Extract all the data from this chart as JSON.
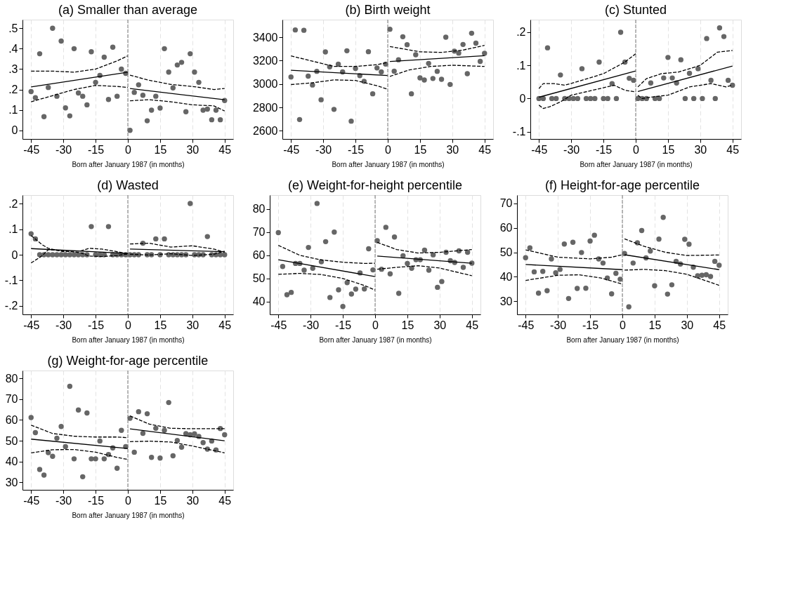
{
  "chart_data": [
    {
      "type": "scatter",
      "title": "(a) Smaller than average",
      "xlabel": "Born after January 1987 (in months)",
      "xlim": [
        -49,
        49
      ],
      "xticks": [
        -45,
        -30,
        -15,
        0,
        15,
        30,
        45
      ],
      "ylim": [
        -0.042,
        0.542
      ],
      "yticks": [
        0,
        {
          "value": 0.1,
          "label": ".1"
        },
        {
          "value": 0.2,
          "label": ".2"
        },
        {
          "value": 0.3,
          "label": ".3"
        },
        {
          "value": 0.4,
          "label": ".4"
        },
        {
          "value": 0.5,
          "label": ".5"
        }
      ],
      "grid": "x",
      "ref_lines": [
        {
          "axis": "x",
          "value": 0,
          "color": "#777777",
          "line_style": "dashed"
        }
      ],
      "x": [
        -45,
        -43,
        -41,
        -39,
        -37,
        -35,
        -33,
        -31,
        -29,
        -27,
        -25,
        -23,
        -21,
        -19,
        -17,
        -15,
        -13,
        -11,
        -9,
        -7,
        -5,
        -3,
        -1,
        1,
        3,
        5,
        7,
        9,
        11,
        13,
        15,
        17,
        19,
        21,
        23,
        25,
        27,
        29,
        31,
        33,
        35,
        37,
        39,
        41,
        43,
        45
      ],
      "series": [
        {
          "color": "#666666",
          "marker": "circle",
          "values": [
            0.19,
            0.16,
            0.375,
            0.067,
            0.21,
            0.5,
            0.167,
            0.437,
            0.11,
            0.071,
            0.4,
            0.183,
            0.167,
            0.125,
            0.385,
            0.235,
            0.269,
            0.358,
            0.151,
            0.407,
            0.167,
            0.3,
            0.279,
            0,
            0.186,
            0.223,
            0.172,
            0.047,
            0.099,
            0.167,
            0.109,
            0.4,
            0.285,
            0.208,
            0.32,
            0.333,
            0.091,
            0.375,
            0.285,
            0.235,
            0.099,
            0.104,
            0.052,
            0.099,
            0.052,
            0.146
          ]
        },
        {
          "type": "line",
          "color": "#000000",
          "line_style": "solid",
          "x": [
            -45,
            0
          ],
          "values": [
            0.213,
            0.285
          ]
        },
        {
          "type": "line",
          "color": "#000000",
          "line_style": "solid",
          "x": [
            1,
            45
          ],
          "values": [
            0.205,
            0.15
          ]
        },
        {
          "type": "line",
          "color": "#000000",
          "line_style": "dashed",
          "x": [
            -45,
            -35,
            -25,
            -15,
            -5,
            0
          ],
          "values": [
            0.29,
            0.29,
            0.285,
            0.3,
            0.34,
            0.365
          ]
        },
        {
          "type": "line",
          "color": "#000000",
          "line_style": "dashed",
          "x": [
            -45,
            -35,
            -25,
            -15,
            -5,
            0
          ],
          "values": [
            0.14,
            0.17,
            0.2,
            0.22,
            0.215,
            0.21
          ]
        },
        {
          "type": "line",
          "color": "#000000",
          "line_style": "dashed",
          "x": [
            1,
            10,
            20,
            30,
            40,
            45
          ],
          "values": [
            0.27,
            0.245,
            0.225,
            0.215,
            0.2,
            0.205
          ]
        },
        {
          "type": "line",
          "color": "#000000",
          "line_style": "dashed",
          "x": [
            1,
            10,
            20,
            30,
            40,
            45
          ],
          "values": [
            0.145,
            0.15,
            0.14,
            0.125,
            0.12,
            0.095
          ]
        }
      ]
    },
    {
      "type": "scatter",
      "title": "(b) Birth weight",
      "xlabel": "Born after January 1987 (in months)",
      "xlim": [
        -49,
        49
      ],
      "xticks": [
        -45,
        -30,
        -15,
        0,
        15,
        30,
        45
      ],
      "ylim": [
        2530,
        3550
      ],
      "yticks": [
        2600,
        2800,
        3000,
        3200,
        3400
      ],
      "grid": "x",
      "ref_lines": [
        {
          "axis": "x",
          "value": 0,
          "color": "#777777",
          "line_style": "dashed"
        }
      ],
      "x": [
        -45,
        -43,
        -41,
        -39,
        -37,
        -35,
        -33,
        -31,
        -29,
        -27,
        -25,
        -23,
        -21,
        -19,
        -17,
        -15,
        -13,
        -11,
        -9,
        -7,
        -5,
        -3,
        -1,
        1,
        3,
        5,
        7,
        9,
        11,
        13,
        15,
        17,
        19,
        21,
        23,
        25,
        27,
        29,
        31,
        33,
        35,
        37,
        39,
        41,
        43,
        45
      ],
      "series": [
        {
          "color": "#666666",
          "marker": "circle",
          "values": [
            3060,
            3462,
            2696,
            3459,
            3067,
            2991,
            3108,
            2865,
            3274,
            3146,
            2783,
            3169,
            3103,
            3284,
            2682,
            3133,
            3071,
            3023,
            3276,
            2916,
            3137,
            3103,
            3170,
            3468,
            3109,
            3207,
            3404,
            3336,
            2916,
            3250,
            3052,
            3034,
            3176,
            3047,
            3108,
            3040,
            3400,
            2996,
            3281,
            3264,
            3338,
            3088,
            3434,
            3349,
            3193,
            3262
          ]
        },
        {
          "type": "line",
          "color": "#000000",
          "line_style": "solid",
          "x": [
            -45,
            0
          ],
          "values": [
            3117,
            3072
          ]
        },
        {
          "type": "line",
          "color": "#000000",
          "line_style": "solid",
          "x": [
            1,
            45
          ],
          "values": [
            3192,
            3242
          ]
        },
        {
          "type": "line",
          "color": "#000000",
          "line_style": "dashed",
          "x": [
            -45,
            -35,
            -25,
            -15,
            -5,
            0
          ],
          "values": [
            3240,
            3195,
            3150,
            3150,
            3165,
            3185
          ]
        },
        {
          "type": "line",
          "color": "#000000",
          "line_style": "dashed",
          "x": [
            -45,
            -35,
            -25,
            -15,
            -5,
            0
          ],
          "values": [
            2995,
            3010,
            3035,
            3030,
            2985,
            2955
          ]
        },
        {
          "type": "line",
          "color": "#000000",
          "line_style": "dashed",
          "x": [
            1,
            15,
            25,
            35,
            45
          ],
          "values": [
            3320,
            3275,
            3270,
            3290,
            3330
          ]
        },
        {
          "type": "line",
          "color": "#000000",
          "line_style": "dashed",
          "x": [
            1,
            10,
            20,
            30,
            45
          ],
          "values": [
            3065,
            3120,
            3150,
            3160,
            3150
          ]
        }
      ]
    },
    {
      "type": "scatter",
      "title": "(c) Stunted",
      "xlabel": "Born after January 1987 (in months)",
      "xlim": [
        -49,
        49
      ],
      "xticks": [
        -45,
        -30,
        -15,
        0,
        15,
        30,
        45
      ],
      "ylim": [
        -0.122,
        0.238
      ],
      "yticks": [
        {
          "value": -0.1,
          "label": "-.1"
        },
        0,
        {
          "value": 0.1,
          "label": ".1"
        },
        {
          "value": 0.2,
          "label": ".2"
        }
      ],
      "grid": "x",
      "ref_lines": [
        {
          "axis": "x",
          "value": 0,
          "color": "#777777",
          "line_style": "dashed"
        }
      ],
      "x": [
        -45,
        -43,
        -41,
        -39,
        -37,
        -35,
        -33,
        -31,
        -29,
        -27,
        -25,
        -23,
        -21,
        -19,
        -17,
        -15,
        -13,
        -11,
        -9,
        -7,
        -5,
        -3,
        -1,
        1,
        3,
        5,
        7,
        9,
        11,
        13,
        15,
        17,
        19,
        21,
        23,
        25,
        27,
        29,
        31,
        33,
        35,
        37,
        39,
        41,
        43,
        45
      ],
      "series": [
        {
          "color": "#666666",
          "marker": "circle",
          "values": [
            0,
            0,
            0.153,
            0,
            0,
            0.071,
            0,
            0,
            0,
            0,
            0.09,
            0,
            0,
            0,
            0.11,
            0,
            0,
            0.045,
            0,
            0.2,
            0.11,
            0.061,
            0.055,
            0,
            0,
            0,
            0.047,
            0,
            0,
            0.062,
            0.124,
            0.062,
            0.047,
            0.117,
            0,
            0.076,
            0,
            0.09,
            0,
            0.181,
            0.055,
            0,
            0.213,
            0.187,
            0.055,
            0.04
          ]
        },
        {
          "type": "line",
          "color": "#000000",
          "line_style": "solid",
          "x": [
            -45,
            0
          ],
          "values": [
            0.004,
            0.083
          ]
        },
        {
          "type": "line",
          "color": "#000000",
          "line_style": "solid",
          "x": [
            1,
            45
          ],
          "values": [
            0.021,
            0.098
          ]
        },
        {
          "type": "line",
          "color": "#000000",
          "line_style": "dashed",
          "x": [
            -45,
            -43,
            -38,
            -33,
            -25,
            -15,
            -5,
            0
          ],
          "values": [
            0.03,
            0.045,
            0.045,
            0.04,
            0.055,
            0.075,
            0.11,
            0.135
          ]
        },
        {
          "type": "line",
          "color": "#000000",
          "line_style": "dashed",
          "x": [
            -45,
            -43,
            -40,
            -35,
            -30,
            -20,
            -10,
            -5,
            0
          ],
          "values": [
            -0.02,
            -0.03,
            -0.025,
            -0.01,
            0.01,
            0.025,
            0.04,
            0.025,
            0.02
          ]
        },
        {
          "type": "line",
          "color": "#000000",
          "line_style": "dashed",
          "x": [
            1,
            5,
            12,
            20,
            30,
            38,
            45
          ],
          "values": [
            0.035,
            0.06,
            0.075,
            0.08,
            0.1,
            0.14,
            0.145
          ]
        },
        {
          "type": "line",
          "color": "#000000",
          "line_style": "dashed",
          "x": [
            1,
            3,
            8,
            15,
            25,
            35,
            42,
            45
          ],
          "values": [
            0.01,
            0,
            0.005,
            0.01,
            0.035,
            0.045,
            0.035,
            0.04
          ]
        }
      ]
    },
    {
      "type": "scatter",
      "title": "(d) Wasted",
      "xlabel": "Born after January 1987 (in months)",
      "xlim": [
        -49,
        49
      ],
      "xticks": [
        -45,
        -30,
        -15,
        0,
        15,
        30,
        45
      ],
      "ylim": [
        -0.233,
        0.233
      ],
      "yticks": [
        {
          "value": -0.2,
          "label": "-.2"
        },
        {
          "value": -0.1,
          "label": "-.1"
        },
        0,
        {
          "value": 0.1,
          "label": ".1"
        },
        {
          "value": 0.2,
          "label": ".2"
        }
      ],
      "grid": "x",
      "ref_lines": [
        {
          "axis": "x",
          "value": 0,
          "color": "#777777",
          "line_style": "dashed"
        }
      ],
      "x": [
        -45,
        -43,
        -41,
        -39,
        -37,
        -35,
        -33,
        -31,
        -29,
        -27,
        -25,
        -23,
        -21,
        -19,
        -17,
        -15,
        -13,
        -11,
        -9,
        -7,
        -5,
        -3,
        -1,
        1,
        3,
        5,
        7,
        9,
        11,
        13,
        15,
        17,
        19,
        21,
        23,
        25,
        27,
        29,
        31,
        33,
        35,
        37,
        39,
        41,
        43,
        45
      ],
      "series": [
        {
          "color": "#666666",
          "marker": "circle",
          "values": [
            0.082,
            0.062,
            0,
            0,
            0,
            0,
            0,
            0,
            0,
            0,
            0,
            0,
            0,
            0,
            0.11,
            0,
            0,
            0,
            0.11,
            0,
            0,
            0,
            0,
            0,
            0,
            0,
            0.045,
            0,
            0,
            0.062,
            0,
            0.062,
            0,
            0,
            0,
            0,
            0,
            0.2,
            0,
            0,
            0,
            0.071,
            0,
            0,
            0,
            0
          ]
        },
        {
          "type": "line",
          "color": "#000000",
          "line_style": "solid",
          "x": [
            -45,
            0
          ],
          "values": [
            0.024,
            0.005
          ]
        },
        {
          "type": "line",
          "color": "#000000",
          "line_style": "solid",
          "x": [
            1,
            45
          ],
          "values": [
            0.022,
            0.012
          ]
        },
        {
          "type": "line",
          "color": "#000000",
          "line_style": "dashed",
          "x": [
            -45,
            -40,
            -37,
            -30,
            -22,
            -18,
            -12,
            -5,
            0
          ],
          "values": [
            0.075,
            0.04,
            0.025,
            0.012,
            0.015,
            0.025,
            0.022,
            0.012,
            0.003
          ]
        },
        {
          "type": "line",
          "color": "#000000",
          "line_style": "dashed",
          "x": [
            -45,
            -40,
            -37,
            -30,
            -22,
            -18,
            -12,
            -5,
            0
          ],
          "values": [
            -0.032,
            -0.005,
            0.02,
            0.015,
            0.008,
            -0.005,
            -0.007,
            -0.003,
            0.003
          ]
        },
        {
          "type": "line",
          "color": "#000000",
          "line_style": "dashed",
          "x": [
            1,
            10,
            20,
            30,
            40,
            45
          ],
          "values": [
            0.042,
            0.045,
            0.03,
            0.035,
            0.022,
            0.01
          ]
        },
        {
          "type": "line",
          "color": "#000000",
          "line_style": "dashed",
          "x": [
            1,
            10,
            20,
            30,
            40,
            45
          ],
          "values": [
            0.002,
            -0.001,
            0.004,
            -0.003,
            0.002,
            0.014
          ]
        }
      ]
    },
    {
      "type": "scatter",
      "title": "(e) Weight-for-height percentile",
      "xlabel": "Born after January 1987 (in months)",
      "xlim": [
        -49,
        49
      ],
      "xticks": [
        -45,
        -30,
        -15,
        0,
        15,
        30,
        45
      ],
      "ylim": [
        34.5,
        86
      ],
      "yticks": [
        40,
        50,
        60,
        70,
        80
      ],
      "grid": "x",
      "ref_lines": [
        {
          "axis": "x",
          "value": 0,
          "color": "#777777",
          "line_style": "dashed"
        }
      ],
      "x": [
        -45,
        -43,
        -41,
        -39,
        -37,
        -35,
        -33,
        -31,
        -29,
        -27,
        -25,
        -23,
        -21,
        -19,
        -17,
        -15,
        -13,
        -11,
        -9,
        -7,
        -5,
        -3,
        -1,
        1,
        3,
        5,
        7,
        9,
        11,
        13,
        15,
        17,
        19,
        21,
        23,
        25,
        27,
        29,
        31,
        33,
        35,
        37,
        39,
        41,
        43,
        45
      ],
      "series": [
        {
          "color": "#666666",
          "marker": "circle",
          "values": [
            69.8,
            55.2,
            43.0,
            44.0,
            56.5,
            56.5,
            53.6,
            63.4,
            54.4,
            82.4,
            57.2,
            65.9,
            41.8,
            70.0,
            45.1,
            37.9,
            48.2,
            43.3,
            45.4,
            52.4,
            45.5,
            62.8,
            53.7,
            66.3,
            54.0,
            72.1,
            52.0,
            67.9,
            43.6,
            59.8,
            56.5,
            54.4,
            58.1,
            58.1,
            62.2,
            53.6,
            60.2,
            46.2,
            48.7,
            61.3,
            57.7,
            56.9,
            61.9,
            54.8,
            61.3,
            56.6
          ]
        },
        {
          "type": "line",
          "color": "#000000",
          "line_style": "solid",
          "x": [
            -45,
            0
          ],
          "values": [
            58.1,
            50.8
          ]
        },
        {
          "type": "line",
          "color": "#000000",
          "line_style": "solid",
          "x": [
            1,
            45
          ],
          "values": [
            59.7,
            56.6
          ]
        },
        {
          "type": "line",
          "color": "#000000",
          "line_style": "dashed",
          "x": [
            -45,
            -35,
            -25,
            -15,
            -5,
            0
          ],
          "values": [
            64.3,
            60,
            58,
            57,
            56.5,
            56.6
          ]
        },
        {
          "type": "line",
          "color": "#000000",
          "line_style": "dashed",
          "x": [
            -45,
            -35,
            -25,
            -15,
            -5,
            0
          ],
          "values": [
            51.8,
            52.2,
            51.7,
            50,
            47,
            45
          ]
        },
        {
          "type": "line",
          "color": "#000000",
          "line_style": "dashed",
          "x": [
            1,
            10,
            20,
            30,
            45
          ],
          "values": [
            65.6,
            62.5,
            61,
            61.3,
            62.5
          ]
        },
        {
          "type": "line",
          "color": "#000000",
          "line_style": "dashed",
          "x": [
            1,
            10,
            20,
            30,
            45
          ],
          "values": [
            54,
            54.8,
            55.5,
            54.5,
            51.2
          ]
        }
      ]
    },
    {
      "type": "scatter",
      "title": "(f) Height-for-age percentile",
      "xlabel": "Born after January 1987 (in months)",
      "xlim": [
        -49,
        49
      ],
      "xticks": [
        -45,
        -30,
        -15,
        0,
        15,
        30,
        45
      ],
      "ylim": [
        24.6,
        73.4
      ],
      "yticks": [
        30,
        40,
        50,
        60,
        70
      ],
      "grid": "x",
      "ref_lines": [
        {
          "axis": "x",
          "value": 0,
          "color": "#777777",
          "line_style": "dashed"
        }
      ],
      "x": [
        -45,
        -43,
        -41,
        -39,
        -37,
        -35,
        -33,
        -31,
        -29,
        -27,
        -25,
        -23,
        -21,
        -19,
        -17,
        -15,
        -13,
        -11,
        -9,
        -7,
        -5,
        -3,
        -1,
        1,
        3,
        5,
        7,
        9,
        11,
        13,
        15,
        17,
        19,
        21,
        23,
        25,
        27,
        29,
        31,
        33,
        35,
        37,
        39,
        41,
        43,
        45
      ],
      "series": [
        {
          "color": "#666666",
          "marker": "circle",
          "values": [
            47.8,
            51.8,
            42.0,
            33.3,
            42.2,
            34.3,
            47.3,
            41.6,
            43.0,
            53.4,
            31.1,
            54.1,
            35.2,
            49.9,
            35.3,
            54.6,
            57.0,
            47.3,
            45.6,
            39.5,
            33.0,
            41.4,
            39.0,
            49.5,
            27.7,
            45.6,
            53.9,
            58.9,
            47.7,
            50.5,
            36.3,
            55.4,
            64.3,
            32.9,
            36.7,
            46.3,
            45.2,
            55.3,
            53.3,
            43.9,
            40.4,
            40.6,
            40.8,
            40.1,
            46.3,
            44.7
          ]
        },
        {
          "type": "line",
          "color": "#000000",
          "line_style": "solid",
          "x": [
            -45,
            0
          ],
          "values": [
            45.0,
            42.9
          ]
        },
        {
          "type": "line",
          "color": "#000000",
          "line_style": "solid",
          "x": [
            1,
            45
          ],
          "values": [
            49.0,
            42.9
          ]
        },
        {
          "type": "line",
          "color": "#000000",
          "line_style": "dashed",
          "x": [
            -45,
            -30,
            -15,
            -5,
            0
          ],
          "values": [
            51,
            48,
            47.3,
            48,
            49
          ]
        },
        {
          "type": "line",
          "color": "#000000",
          "line_style": "dashed",
          "x": [
            -45,
            -30,
            -20,
            -10,
            0
          ],
          "values": [
            38.5,
            40.6,
            40.8,
            39.5,
            37
          ]
        },
        {
          "type": "line",
          "color": "#000000",
          "line_style": "dashed",
          "x": [
            1,
            10,
            20,
            30,
            45
          ],
          "values": [
            55.5,
            52.5,
            50,
            48.7,
            48.9
          ]
        },
        {
          "type": "line",
          "color": "#000000",
          "line_style": "dashed",
          "x": [
            1,
            10,
            20,
            30,
            45
          ],
          "values": [
            42.7,
            43,
            42.5,
            41,
            36.5
          ]
        }
      ]
    },
    {
      "type": "scatter",
      "title": "(g) Weight-for-age percentile",
      "xlabel": "Born after January 1987 (in months)",
      "xlim": [
        -49,
        49
      ],
      "xticks": [
        -45,
        -30,
        -15,
        0,
        15,
        30,
        45
      ],
      "ylim": [
        26.4,
        83.8
      ],
      "yticks": [
        30,
        40,
        50,
        60,
        70,
        80
      ],
      "grid": "x",
      "ref_lines": [
        {
          "axis": "x",
          "value": 0,
          "color": "#777777",
          "line_style": "dashed"
        }
      ],
      "x": [
        -45,
        -43,
        -41,
        -39,
        -37,
        -35,
        -33,
        -31,
        -29,
        -27,
        -25,
        -23,
        -21,
        -19,
        -17,
        -15,
        -13,
        -11,
        -9,
        -7,
        -5,
        -3,
        -1,
        1,
        3,
        5,
        7,
        9,
        11,
        13,
        15,
        17,
        19,
        21,
        23,
        25,
        27,
        29,
        31,
        33,
        35,
        37,
        39,
        41,
        43,
        45
      ],
      "series": [
        {
          "color": "#666666",
          "marker": "circle",
          "values": [
            61.2,
            53.9,
            36.2,
            33.5,
            44.3,
            42.5,
            51.2,
            56.9,
            47.2,
            76.2,
            41.3,
            64.8,
            32.7,
            63.4,
            41.3,
            41.3,
            49.9,
            41.3,
            43.4,
            46.6,
            36.8,
            55.0,
            47.2,
            60.8,
            44.5,
            64.0,
            53.6,
            63.0,
            42.0,
            56.0,
            41.7,
            55.0,
            68.4,
            42.8,
            50.1,
            46.9,
            53.4,
            52.9,
            53.3,
            52.1,
            49.1,
            46.0,
            49.9,
            45.6,
            55.9,
            52.9
          ]
        },
        {
          "type": "line",
          "color": "#000000",
          "line_style": "solid",
          "x": [
            -45,
            0
          ],
          "values": [
            50.8,
            46.3
          ]
        },
        {
          "type": "line",
          "color": "#000000",
          "line_style": "solid",
          "x": [
            1,
            45
          ],
          "values": [
            55.7,
            50
          ]
        },
        {
          "type": "line",
          "color": "#000000",
          "line_style": "dashed",
          "x": [
            -45,
            -35,
            -25,
            -15,
            -5,
            0
          ],
          "values": [
            57.5,
            53.5,
            52.2,
            51.8,
            51.8,
            51.5
          ]
        },
        {
          "type": "line",
          "color": "#000000",
          "line_style": "dashed",
          "x": [
            -45,
            -35,
            -25,
            -15,
            -5,
            0
          ],
          "values": [
            44.2,
            45.7,
            45.8,
            44.5,
            42,
            41
          ]
        },
        {
          "type": "line",
          "color": "#000000",
          "line_style": "dashed",
          "x": [
            1,
            10,
            20,
            30,
            45
          ],
          "values": [
            62,
            58,
            56,
            55.8,
            55.8
          ]
        },
        {
          "type": "line",
          "color": "#000000",
          "line_style": "dashed",
          "x": [
            1,
            10,
            20,
            30,
            45
          ],
          "values": [
            49.6,
            49.8,
            49.4,
            47.5,
            44.2
          ]
        }
      ]
    }
  ]
}
